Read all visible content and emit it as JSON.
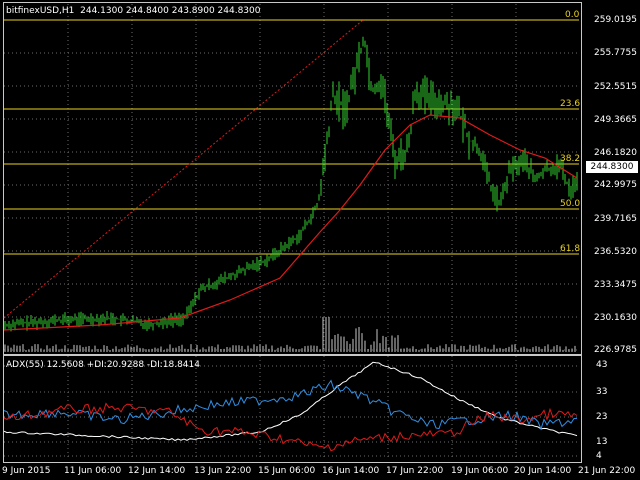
{
  "chart": {
    "title": "bitfinexUSD,H1  244.1300 244.8400 243.8900 244.8300",
    "current_price": "244.8300",
    "y_ticks": [
      "259.0195",
      "255.7755",
      "252.5515",
      "249.3665",
      "246.1820",
      "242.9975",
      "239.7165",
      "236.5320",
      "233.3475",
      "230.1630",
      "226.9785"
    ],
    "fib_levels": [
      {
        "label": "0.0",
        "price": 259.0
      },
      {
        "label": "23.6",
        "price": 250.3
      },
      {
        "label": "38.2",
        "price": 244.9
      },
      {
        "label": "50.0",
        "price": 240.6
      },
      {
        "label": "61.8",
        "price": 236.2
      }
    ],
    "colors": {
      "background": "#000000",
      "bars": "#2fd12f",
      "ma": "#e01a1a",
      "fib": "#e8d21f",
      "grid": "#6b6b6b",
      "volume": "#c8c8c8"
    }
  },
  "indicator": {
    "title": "ADX(55) 12.5608 +DI:20.9288 -DI:18.8414",
    "y_ticks": [
      "43",
      "33",
      "23",
      "13",
      "4"
    ],
    "colors": {
      "adx": "#ffffff",
      "plus_di": "#2f8fe6",
      "minus_di": "#e01a1a"
    }
  },
  "x_ticks": [
    "9 Jun 2015",
    "11 Jun 06:00",
    "12 Jun 14:00",
    "13 Jun 22:00",
    "15 Jun 06:00",
    "16 Jun 14:00",
    "17 Jun 22:00",
    "19 Jun 06:00",
    "20 Jun 14:00",
    "21 Jun 22:00"
  ]
}
